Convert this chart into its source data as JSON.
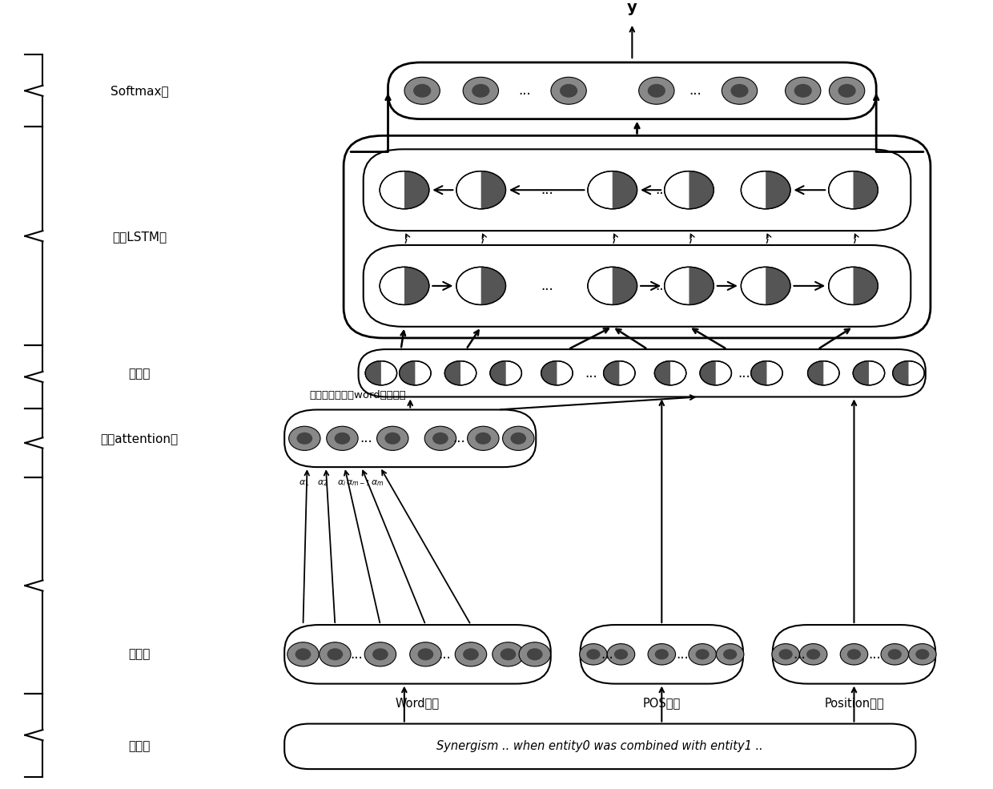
{
  "fig_width": 12.4,
  "fig_height": 9.85,
  "bg_color": "#ffffff",
  "input_text": "Synergism .. when entity0 was combined with entity1 ..",
  "word_label": "Word索引",
  "pos_label": "POS索引",
  "position_label": "Position索引",
  "attention_label": "面向候选实体的word嵌入向量",
  "y_label": "y",
  "softmax_label": "Softmax层",
  "bilstm_label": "双向LSTM层",
  "merge_label": "合并层",
  "attention_layer_label": "输入attention层",
  "embed_label": "嵌入层",
  "input_label": "输入层",
  "alpha_labels": [
    "α₁",
    "α₂",
    "αi",
    "αm-1",
    "αm"
  ]
}
